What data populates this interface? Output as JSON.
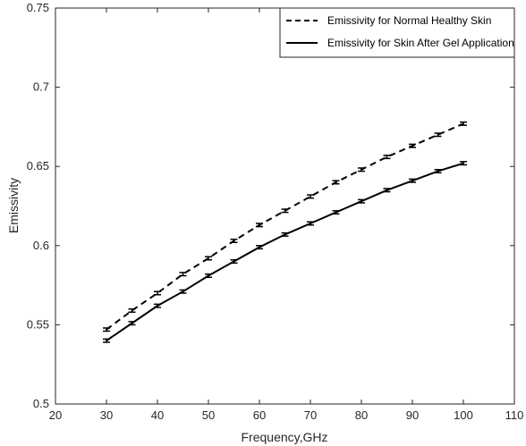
{
  "chart_data": {
    "type": "line",
    "title": "",
    "xlabel": "Frequency,GHz",
    "ylabel": "Emissivity",
    "xlim": [
      20,
      110
    ],
    "ylim": [
      0.5,
      0.75
    ],
    "x_ticks": [
      "20",
      "30",
      "40",
      "50",
      "60",
      "70",
      "80",
      "90",
      "100",
      "110"
    ],
    "y_ticks": [
      "0.5",
      "0.55",
      "0.6",
      "0.65",
      "0.7",
      "0.75"
    ],
    "grid": false,
    "legend_position": "top-right",
    "x": [
      30,
      35,
      40,
      45,
      50,
      55,
      60,
      65,
      70,
      75,
      80,
      85,
      90,
      95,
      100
    ],
    "series": [
      {
        "name": "Emissivity for Normal Healthy Skin",
        "line_style": "dashed",
        "color": "#000000",
        "values": [
          0.547,
          0.559,
          0.57,
          0.582,
          0.592,
          0.603,
          0.613,
          0.622,
          0.631,
          0.64,
          0.648,
          0.656,
          0.663,
          0.67,
          0.677
        ],
        "error": 0.001
      },
      {
        "name": "Emissivity for Skin After Gel Application",
        "line_style": "solid",
        "color": "#000000",
        "values": [
          0.54,
          0.551,
          0.562,
          0.571,
          0.581,
          0.59,
          0.599,
          0.607,
          0.614,
          0.621,
          0.628,
          0.635,
          0.641,
          0.647,
          0.652
        ],
        "error": 0.001
      }
    ]
  }
}
